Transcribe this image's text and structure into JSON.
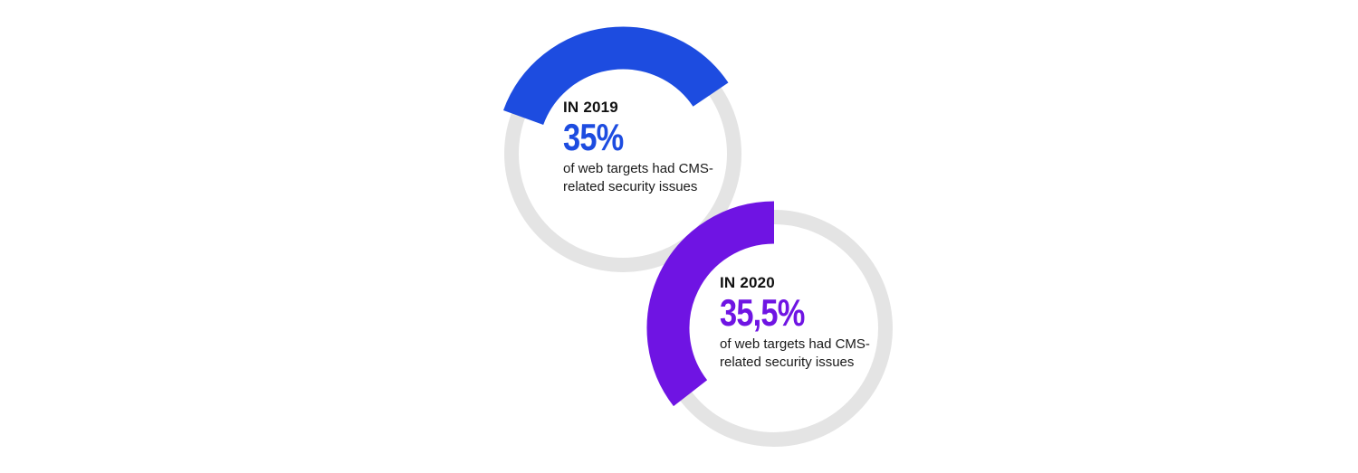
{
  "chart_data": [
    {
      "type": "pie",
      "year_label": "IN 2019",
      "value_label": "35%",
      "value": 35,
      "caption": "of web targets had CMS-related security issues",
      "color": "#1d4ce0",
      "track_color": "#e4e4e4"
    },
    {
      "type": "pie",
      "year_label": "IN 2020",
      "value_label": "35,5%",
      "value": 35.5,
      "caption": "of web targets had CMS-related security issues",
      "color": "#6f14e3",
      "track_color": "#e4e4e4"
    }
  ]
}
